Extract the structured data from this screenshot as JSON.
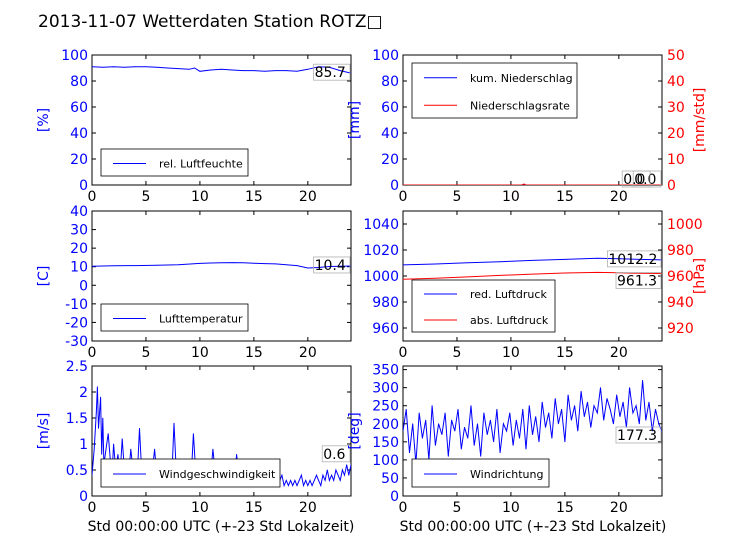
{
  "page_title": "2013-11-07 Wetterdaten Station ROTZ□",
  "xlabel": "Std 00:00:00 UTC (+-23 Std Lokalzeit)",
  "colors": {
    "left_axis": "#0000ff",
    "right_axis": "#ff0000",
    "series_blue": "#0000ff",
    "series_red": "#ff0000",
    "wind_light": "#8080ff"
  },
  "chart_data": [
    {
      "id": "humidity",
      "type": "line",
      "xlim": [
        0,
        24
      ],
      "ylim": [
        0,
        100
      ],
      "xticks": [
        0,
        5,
        10,
        15,
        20
      ],
      "yticks": [
        0,
        20,
        40,
        60,
        80,
        100
      ],
      "ylabel": "[%]",
      "legend": [
        "rel. Luftfeuchte"
      ],
      "legend_placement": "lower-left",
      "last_value": "85.7",
      "series": [
        {
          "name": "rel. Luftfeuchte",
          "color": "#0000ff",
          "x": [
            0,
            1,
            2,
            3,
            4,
            5,
            6,
            7,
            8,
            9,
            9.5,
            10,
            11,
            12,
            13,
            14,
            15,
            16,
            17,
            18,
            19,
            20,
            21,
            22,
            23,
            24
          ],
          "y": [
            91,
            90.5,
            91,
            90.5,
            91,
            91,
            90.5,
            90,
            89.5,
            89,
            90,
            87.5,
            88.5,
            89,
            88.5,
            88,
            88,
            87.5,
            88,
            88,
            87.5,
            89,
            91,
            90.5,
            88,
            86
          ]
        }
      ]
    },
    {
      "id": "precipitation",
      "type": "line",
      "xlim": [
        0,
        24
      ],
      "ylim": [
        0,
        100
      ],
      "ylim_right": [
        0,
        50
      ],
      "xticks": [
        0,
        5,
        10,
        15,
        20
      ],
      "yticks": [
        0,
        20,
        40,
        60,
        80,
        100
      ],
      "yticks_right": [
        0,
        10,
        20,
        30,
        40,
        50
      ],
      "ylabel": "[mm]",
      "ylabel_right": "[mm/std]",
      "legend": [
        "kum. Niederschlag",
        "Niederschlagsrate"
      ],
      "legend_placement": "top-left",
      "last_value": "0.0",
      "last_value_right": "0.0",
      "series": [
        {
          "name": "kum. Niederschlag",
          "axis": "left",
          "color": "#0000ff",
          "x": [
            0,
            24
          ],
          "y": [
            0,
            0
          ]
        },
        {
          "name": "Niederschlagsrate",
          "axis": "right",
          "color": "#ff0000",
          "x": [
            0,
            11,
            11.2,
            11.4,
            11.6,
            24
          ],
          "y": [
            0,
            0,
            0.4,
            0,
            0,
            0
          ]
        }
      ]
    },
    {
      "id": "temperature",
      "type": "line",
      "xlim": [
        0,
        24
      ],
      "ylim": [
        -30,
        40
      ],
      "xticks": [
        0,
        5,
        10,
        15,
        20
      ],
      "yticks": [
        -30,
        -20,
        -10,
        0,
        10,
        20,
        30,
        40
      ],
      "ylabel": "[C]",
      "legend": [
        "Lufttemperatur"
      ],
      "legend_placement": "lower-left",
      "last_value": "10.4",
      "series": [
        {
          "name": "Lufttemperatur",
          "color": "#0000ff",
          "x": [
            0,
            2,
            4,
            6,
            8,
            10,
            11,
            12,
            13,
            14,
            15,
            16,
            17,
            18,
            19,
            20,
            21,
            22,
            23,
            24
          ],
          "y": [
            10.3,
            10.5,
            10.6,
            10.8,
            11.1,
            11.8,
            12,
            12.1,
            12.2,
            12.1,
            11.9,
            11.7,
            11.5,
            11.1,
            10.6,
            9.3,
            9.6,
            10.1,
            10.3,
            10.4
          ]
        }
      ]
    },
    {
      "id": "pressure",
      "type": "line",
      "xlim": [
        0,
        24
      ],
      "ylim": [
        950,
        1050
      ],
      "ylim_right": [
        910,
        1010
      ],
      "xticks": [
        0,
        5,
        10,
        15,
        20
      ],
      "yticks": [
        960,
        980,
        1000,
        1020,
        1040
      ],
      "yticks_right": [
        920,
        940,
        960,
        980,
        1000
      ],
      "ylabel": "",
      "ylabel_right": "[hPa]",
      "legend": [
        "red. Luftdruck",
        "abs. Luftdruck"
      ],
      "legend_placement": "lower-left",
      "last_value": "1012.2",
      "last_value_right": "961.3",
      "series": [
        {
          "name": "red. Luftdruck",
          "axis": "left",
          "color": "#0000ff",
          "x": [
            0,
            3,
            6,
            9,
            12,
            15,
            18,
            20,
            22,
            24
          ],
          "y": [
            1008.5,
            1009.2,
            1010.2,
            1011,
            1012,
            1012.8,
            1013.6,
            1013.3,
            1012.8,
            1012.4
          ]
        },
        {
          "name": "abs. Luftdruck",
          "axis": "right",
          "color": "#ff0000",
          "x": [
            0,
            3,
            6,
            9,
            12,
            15,
            18,
            20,
            22,
            24
          ],
          "y": [
            957.5,
            958.2,
            959.3,
            960.5,
            961.5,
            962.3,
            962.8,
            962.5,
            962.1,
            961.9
          ]
        }
      ]
    },
    {
      "id": "wind_speed",
      "type": "line",
      "xlim": [
        0,
        24
      ],
      "ylim": [
        0,
        2.5
      ],
      "xticks": [
        0,
        5,
        10,
        15,
        20
      ],
      "yticks": [
        0,
        0.5,
        1,
        1.5,
        2,
        2.5
      ],
      "ylabel": "[m/s]",
      "legend": [
        "Windgeschwindigkeit"
      ],
      "legend_placement": "lower-left",
      "last_value": "0.6",
      "series": [
        {
          "name": "Windgeschwindigkeit",
          "color": "#0000ff",
          "x": [
            0,
            0.2,
            0.4,
            0.5,
            0.6,
            0.8,
            0.9,
            1.0,
            1.1,
            1.3,
            1.5,
            1.7,
            1.9,
            2.0,
            2.2,
            2.4,
            2.6,
            2.8,
            3.0,
            3.2,
            3.4,
            3.6,
            3.8,
            4.0,
            4.2,
            4.4,
            4.6,
            4.8,
            5.0,
            5.2,
            5.4,
            5.6,
            5.8,
            6.0,
            6.2,
            6.4,
            6.6,
            6.8,
            7.0,
            7.2,
            7.4,
            7.6,
            7.8,
            8.0,
            8.2,
            8.4,
            8.6,
            8.8,
            9.0,
            9.2,
            9.4,
            9.6,
            9.8,
            10.0,
            10.2,
            10.4,
            10.6,
            10.8,
            11.0,
            11.2,
            11.4,
            11.6,
            11.8,
            12.0,
            12.2,
            12.4,
            12.6,
            12.8,
            13.0,
            13.2,
            13.4,
            13.6,
            13.8,
            14.0,
            14.2,
            14.4,
            14.6,
            14.8,
            15.0,
            15.2,
            15.4,
            15.6,
            15.8,
            16.0,
            16.2,
            16.4,
            16.6,
            16.8,
            17.0,
            17.2,
            17.4,
            17.6,
            17.8,
            18.0,
            18.2,
            18.4,
            18.6,
            18.8,
            19.0,
            19.2,
            19.4,
            19.6,
            19.8,
            20.0,
            20.2,
            20.4,
            20.6,
            20.8,
            21.0,
            21.2,
            21.4,
            21.6,
            21.8,
            22.0,
            22.2,
            22.4,
            22.6,
            22.8,
            23.0,
            23.2,
            23.4,
            23.6,
            23.8,
            24.0
          ],
          "y": [
            0.4,
            0.9,
            1.6,
            2.1,
            1.3,
            1.9,
            0.8,
            1.5,
            0.6,
            0.9,
            1.2,
            0.7,
            0.6,
            1.0,
            0.5,
            0.8,
            0.4,
            1.1,
            0.5,
            0.7,
            0.4,
            0.9,
            0.5,
            0.6,
            0.4,
            1.3,
            0.5,
            0.6,
            0.4,
            0.7,
            0.4,
            0.5,
            0.9,
            0.4,
            0.6,
            0.4,
            0.7,
            0.5,
            0.4,
            0.6,
            0.4,
            1.4,
            0.5,
            0.4,
            0.6,
            0.3,
            0.5,
            0.4,
            0.6,
            0.4,
            1.2,
            0.5,
            0.4,
            0.6,
            0.3,
            0.5,
            0.4,
            0.6,
            0.4,
            0.9,
            0.5,
            0.3,
            0.5,
            0.4,
            0.6,
            0.3,
            0.5,
            0.4,
            0.6,
            0.3,
            0.8,
            0.4,
            0.3,
            0.5,
            0.4,
            0.3,
            0.6,
            0.4,
            0.3,
            0.4,
            0.5,
            0.3,
            0.4,
            0.3,
            0.5,
            0.3,
            0.4,
            0.3,
            0.4,
            0.2,
            0.3,
            0.4,
            0.2,
            0.3,
            0.2,
            0.3,
            0.2,
            0.3,
            0.2,
            0.3,
            0.4,
            0.2,
            0.3,
            0.2,
            0.3,
            0.2,
            0.3,
            0.4,
            0.3,
            0.2,
            0.4,
            0.3,
            0.5,
            0.3,
            0.4,
            0.3,
            0.5,
            0.4,
            0.3,
            0.5,
            0.4,
            0.6,
            0.4,
            0.6
          ]
        }
      ]
    },
    {
      "id": "wind_direction",
      "type": "line",
      "xlim": [
        0,
        24
      ],
      "ylim": [
        0,
        360
      ],
      "xticks": [
        0,
        5,
        10,
        15,
        20
      ],
      "yticks": [
        0,
        50,
        100,
        150,
        200,
        250,
        300,
        350
      ],
      "ylabel": "[deg]",
      "legend": [
        "Windrichtung"
      ],
      "legend_placement": "lower-left",
      "last_value": "177.3",
      "series": [
        {
          "name": "Windrichtung",
          "color": "#0000ff",
          "x": [
            0,
            0.3,
            0.6,
            0.9,
            1.2,
            1.5,
            1.8,
            2.1,
            2.4,
            2.7,
            3.0,
            3.3,
            3.6,
            3.9,
            4.2,
            4.5,
            4.8,
            5.1,
            5.4,
            5.7,
            6.0,
            6.3,
            6.6,
            6.9,
            7.2,
            7.5,
            7.8,
            8.1,
            8.4,
            8.7,
            9.0,
            9.3,
            9.6,
            9.9,
            10.2,
            10.5,
            10.8,
            11.1,
            11.4,
            11.7,
            12.0,
            12.3,
            12.6,
            12.9,
            13.2,
            13.5,
            13.8,
            14.1,
            14.4,
            14.7,
            15.0,
            15.3,
            15.6,
            15.9,
            16.2,
            16.5,
            16.8,
            17.1,
            17.4,
            17.7,
            18.0,
            18.3,
            18.6,
            18.9,
            19.2,
            19.5,
            19.8,
            20.1,
            20.4,
            20.7,
            21.0,
            21.3,
            21.6,
            21.9,
            22.2,
            22.5,
            22.8,
            23.1,
            23.4,
            23.7,
            24.0
          ],
          "y": [
            180,
            240,
            120,
            200,
            90,
            230,
            160,
            210,
            100,
            250,
            140,
            200,
            170,
            230,
            110,
            210,
            180,
            240,
            130,
            190,
            160,
            250,
            140,
            200,
            110,
            230,
            170,
            210,
            150,
            240,
            120,
            200,
            180,
            230,
            140,
            210,
            160,
            240,
            130,
            250,
            170,
            220,
            150,
            260,
            190,
            230,
            160,
            270,
            200,
            240,
            150,
            280,
            210,
            250,
            180,
            290,
            220,
            260,
            190,
            250,
            230,
            300,
            210,
            270,
            240,
            200,
            280,
            220,
            260,
            190,
            300,
            230,
            250,
            200,
            320,
            210,
            260,
            180,
            240,
            200,
            177.3
          ]
        }
      ]
    }
  ]
}
